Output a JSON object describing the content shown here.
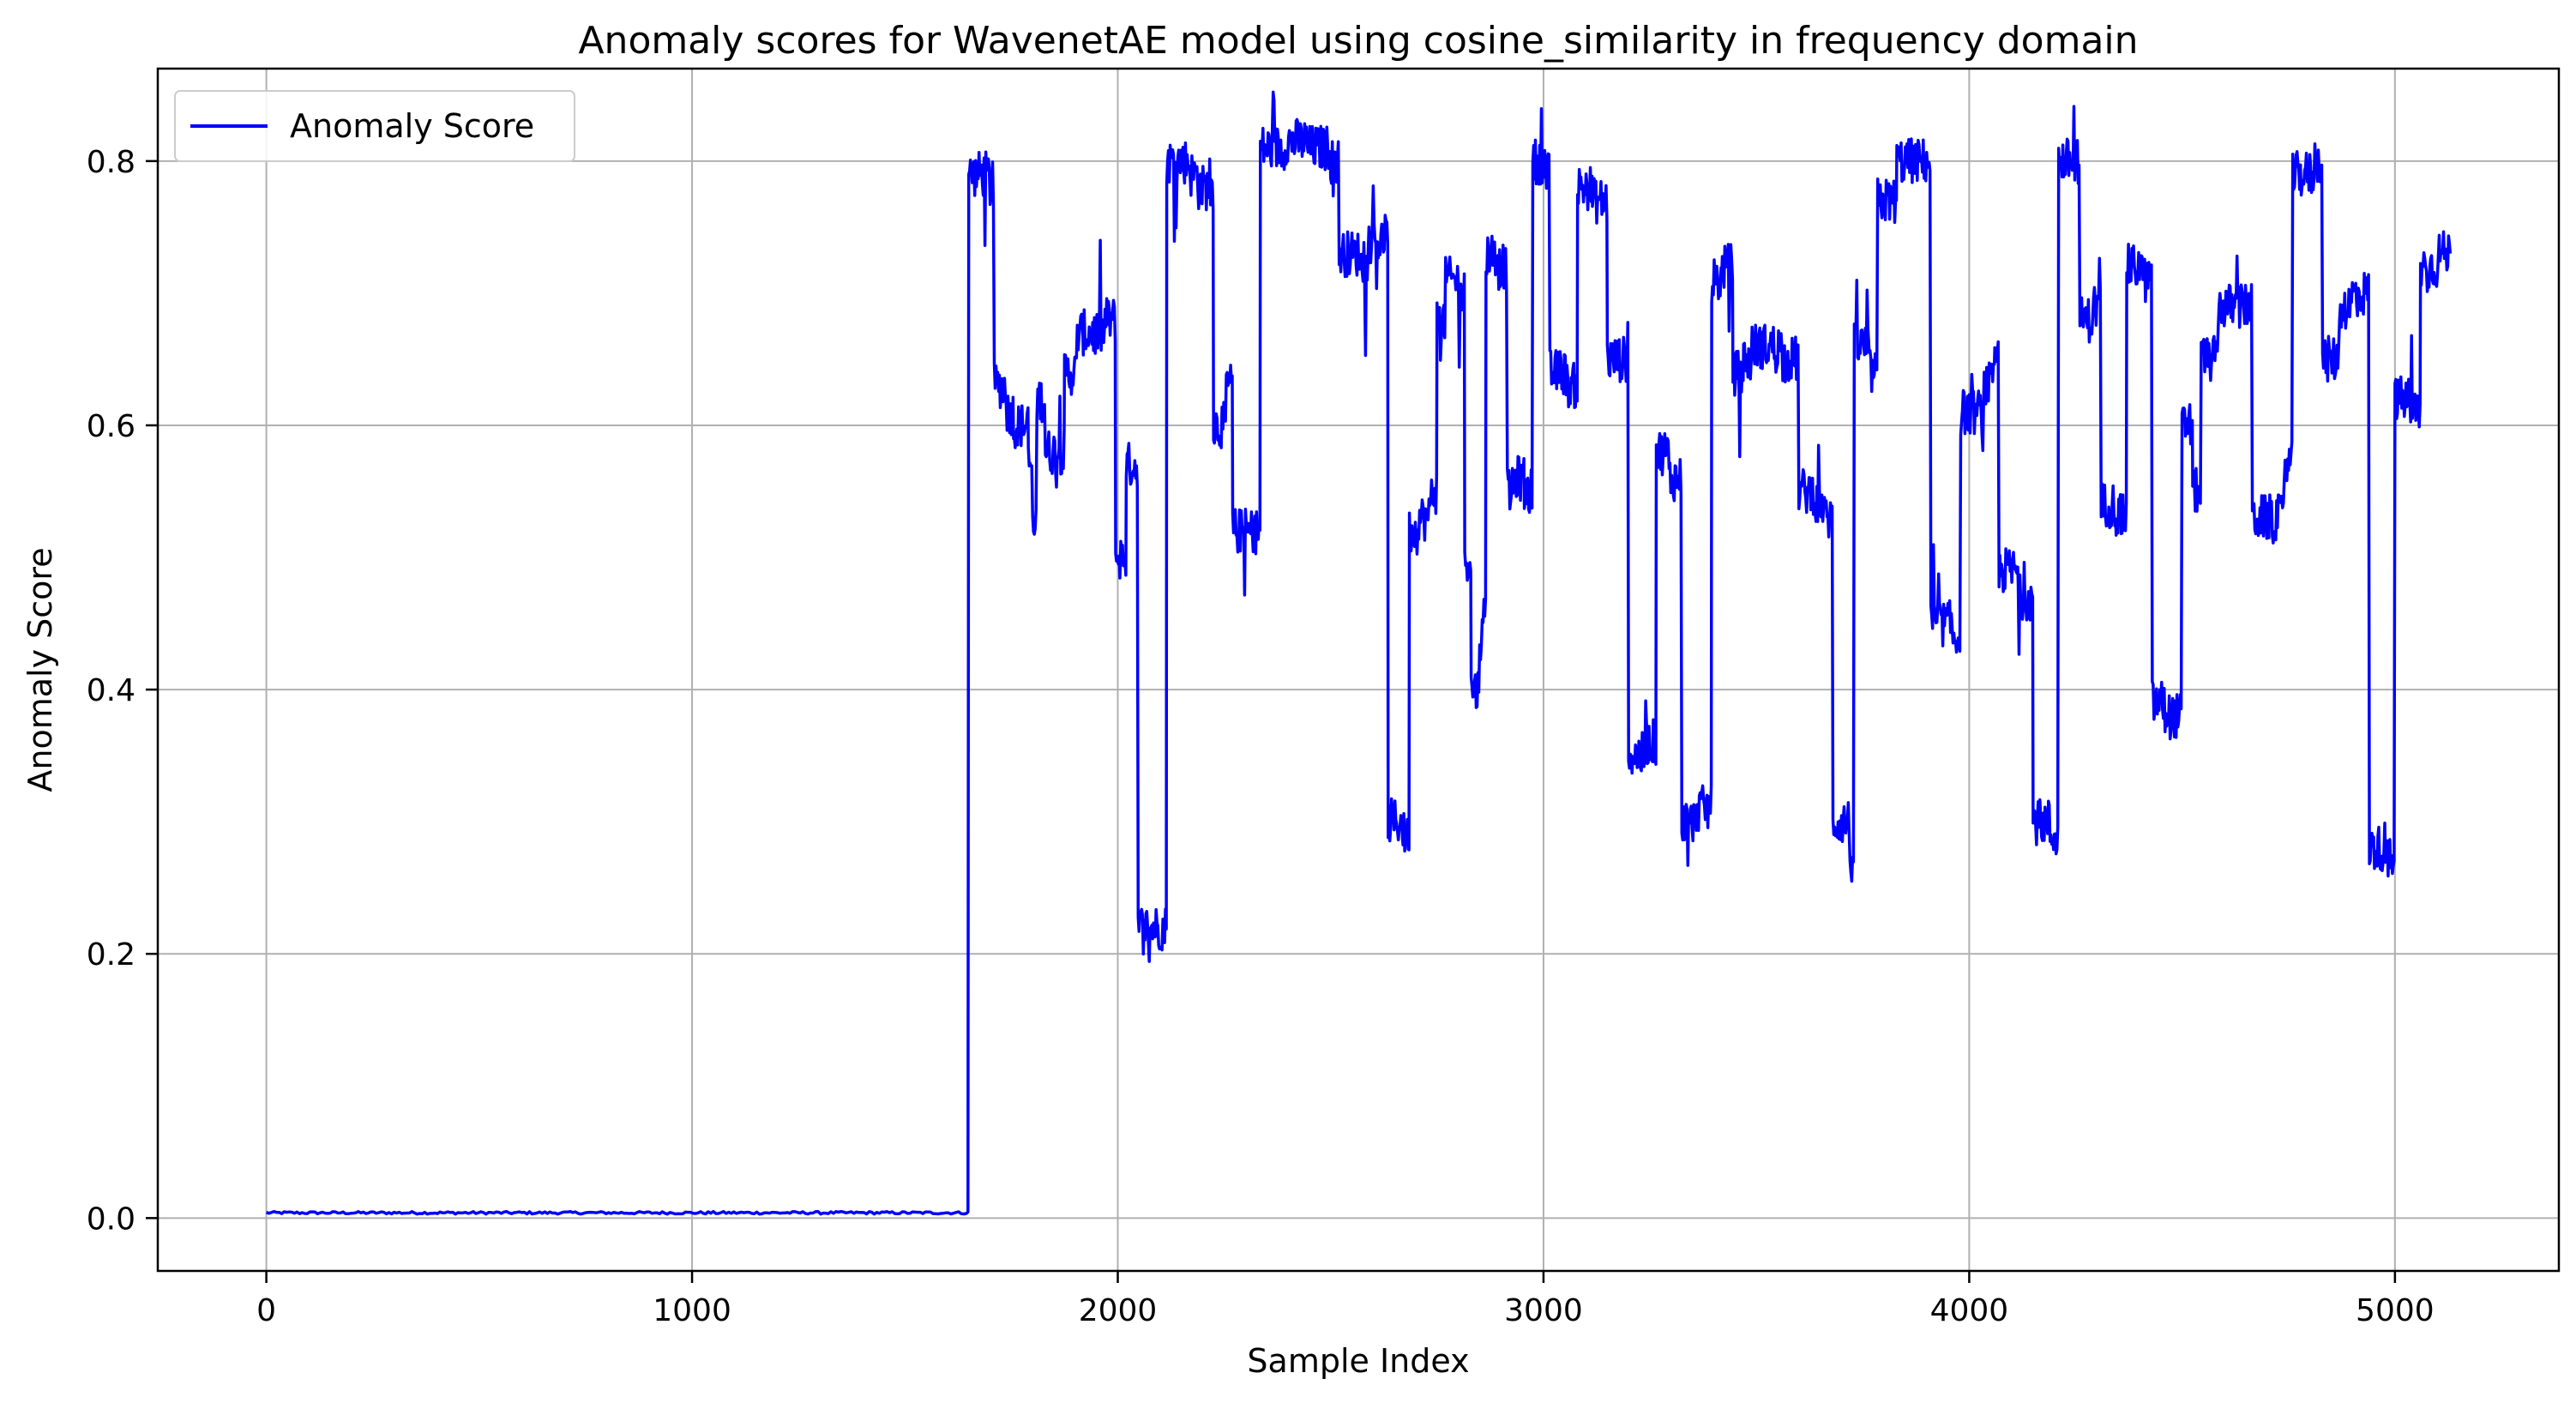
{
  "chart_data": {
    "type": "line",
    "title": "Anomaly scores for WavenetAE model using cosine_similarity in frequency domain",
    "xlabel": "Sample Index",
    "ylabel": "Anomaly Score",
    "xlim": [
      -255,
      5385
    ],
    "ylim": [
      -0.04,
      0.87
    ],
    "grid": true,
    "legend_position": "top-left",
    "x_ticks": [
      0,
      1000,
      2000,
      3000,
      4000,
      5000
    ],
    "x_tick_labels": [
      "0",
      "1000",
      "2000",
      "3000",
      "4000",
      "5000"
    ],
    "y_ticks": [
      0.0,
      0.2,
      0.4,
      0.6,
      0.8
    ],
    "y_tick_labels": [
      "0.0",
      "0.2",
      "0.4",
      "0.6",
      "0.8"
    ],
    "series": [
      {
        "name": "Anomaly Score",
        "color": "#0000ff",
        "levels": [
          [
            0,
            0.004
          ],
          [
            1648,
            0.004
          ],
          [
            1650,
            0.79
          ],
          [
            1700,
            0.78
          ],
          [
            1710,
            0.63
          ],
          [
            1740,
            0.61
          ],
          [
            1755,
            0.6
          ],
          [
            1790,
            0.57
          ],
          [
            1800,
            0.52
          ],
          [
            1810,
            0.62
          ],
          [
            1830,
            0.58
          ],
          [
            1875,
            0.64
          ],
          [
            1905,
            0.67
          ],
          [
            1970,
            0.68
          ],
          [
            1995,
            0.5
          ],
          [
            2020,
            0.57
          ],
          [
            2048,
            0.22
          ],
          [
            2115,
            0.8
          ],
          [
            2170,
            0.79
          ],
          [
            2190,
            0.78
          ],
          [
            2225,
            0.6
          ],
          [
            2255,
            0.63
          ],
          [
            2270,
            0.52
          ],
          [
            2335,
            0.81
          ],
          [
            2395,
            0.815
          ],
          [
            2445,
            0.81
          ],
          [
            2500,
            0.8
          ],
          [
            2520,
            0.73
          ],
          [
            2570,
            0.72
          ],
          [
            2590,
            0.74
          ],
          [
            2635,
            0.3
          ],
          [
            2670,
            0.29
          ],
          [
            2685,
            0.52
          ],
          [
            2705,
            0.53
          ],
          [
            2735,
            0.55
          ],
          [
            2750,
            0.68
          ],
          [
            2770,
            0.71
          ],
          [
            2800,
            0.7
          ],
          [
            2815,
            0.5
          ],
          [
            2830,
            0.4
          ],
          [
            2850,
            0.44
          ],
          [
            2860,
            0.46
          ],
          [
            2865,
            0.73
          ],
          [
            2895,
            0.72
          ],
          [
            2915,
            0.55
          ],
          [
            2930,
            0.56
          ],
          [
            2955,
            0.55
          ],
          [
            2975,
            0.8
          ],
          [
            3005,
            0.79
          ],
          [
            3015,
            0.64
          ],
          [
            3055,
            0.63
          ],
          [
            3080,
            0.78
          ],
          [
            3115,
            0.77
          ],
          [
            3150,
            0.65
          ],
          [
            3200,
            0.35
          ],
          [
            3240,
            0.36
          ],
          [
            3265,
            0.58
          ],
          [
            3295,
            0.56
          ],
          [
            3325,
            0.3
          ],
          [
            3360,
            0.31
          ],
          [
            3395,
            0.71
          ],
          [
            3420,
            0.72
          ],
          [
            3445,
            0.64
          ],
          [
            3470,
            0.65
          ],
          [
            3490,
            0.66
          ],
          [
            3560,
            0.65
          ],
          [
            3600,
            0.55
          ],
          [
            3640,
            0.54
          ],
          [
            3660,
            0.53
          ],
          [
            3680,
            0.3
          ],
          [
            3720,
            0.27
          ],
          [
            3730,
            0.66
          ],
          [
            3765,
            0.64
          ],
          [
            3785,
            0.77
          ],
          [
            3830,
            0.8
          ],
          [
            3890,
            0.8
          ],
          [
            3910,
            0.45
          ],
          [
            3960,
            0.44
          ],
          [
            3980,
            0.61
          ],
          [
            4035,
            0.63
          ],
          [
            4060,
            0.65
          ],
          [
            4070,
            0.49
          ],
          [
            4115,
            0.47
          ],
          [
            4150,
            0.3
          ],
          [
            4190,
            0.29
          ],
          [
            4210,
            0.8
          ],
          [
            4240,
            0.8
          ],
          [
            4260,
            0.68
          ],
          [
            4290,
            0.69
          ],
          [
            4310,
            0.54
          ],
          [
            4345,
            0.53
          ],
          [
            4370,
            0.72
          ],
          [
            4410,
            0.71
          ],
          [
            4430,
            0.39
          ],
          [
            4460,
            0.38
          ],
          [
            4500,
            0.6
          ],
          [
            4525,
            0.55
          ],
          [
            4545,
            0.65
          ],
          [
            4585,
            0.69
          ],
          [
            4655,
            0.69
          ],
          [
            4665,
            0.53
          ],
          [
            4700,
            0.53
          ],
          [
            4740,
            0.57
          ],
          [
            4760,
            0.79
          ],
          [
            4810,
            0.8
          ],
          [
            4830,
            0.65
          ],
          [
            4870,
            0.69
          ],
          [
            4900,
            0.7
          ],
          [
            4930,
            0.7
          ],
          [
            4940,
            0.28
          ],
          [
            4980,
            0.27
          ],
          [
            5000,
            0.62
          ],
          [
            5035,
            0.61
          ],
          [
            5060,
            0.72
          ],
          [
            5100,
            0.73
          ],
          [
            5130,
            0.73
          ]
        ]
      }
    ]
  }
}
